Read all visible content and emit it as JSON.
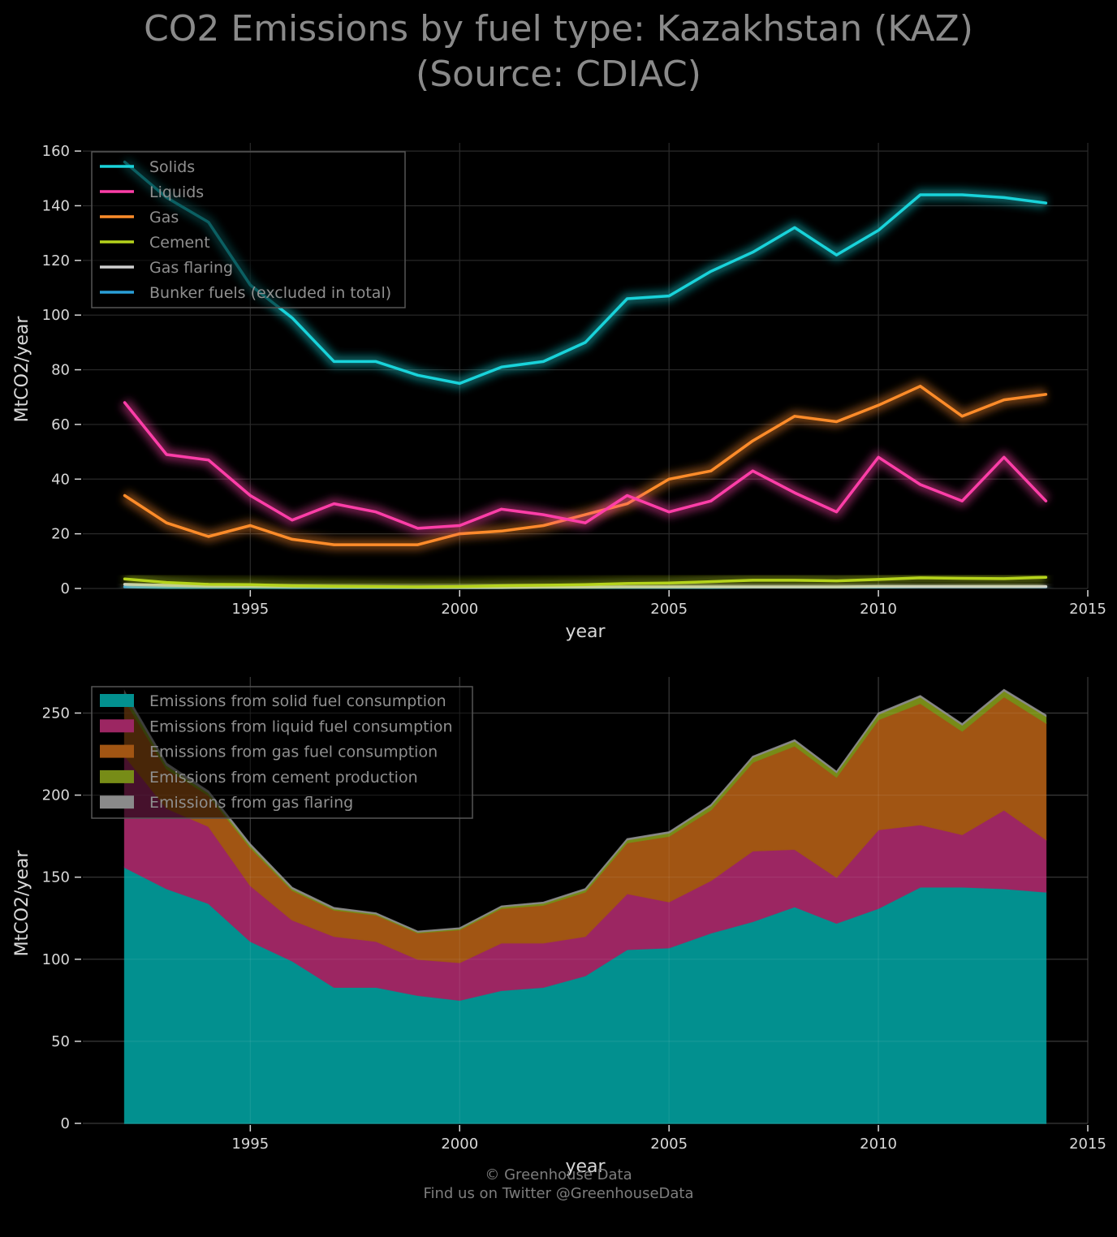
{
  "title": {
    "line1": "CO2 Emissions by fuel type: Kazakhstan (KAZ)",
    "line2": "(Source: CDIAC)"
  },
  "footer": {
    "line1": "© Greenhouse Data",
    "line2": "Find us on Twitter @GreenhouseData"
  },
  "colors": {
    "solids": "#19d3da",
    "liquids": "#ff3ea8",
    "gas": "#ff8c2a",
    "cement": "#b5d31c",
    "flaring": "#cfcfcf",
    "bunker": "#2a9fd8",
    "area_solids": "#02908f",
    "area_liquids": "#9c2662",
    "area_gas": "#a15513",
    "area_cement": "#778c17",
    "area_flaring": "#8a8a8a"
  },
  "chart_data": [
    {
      "type": "line",
      "xlabel": "year",
      "ylabel": "MtCO2/year",
      "xlim": [
        1991,
        2015
      ],
      "ylim": [
        0,
        163
      ],
      "xticks": [
        1995,
        2000,
        2005,
        2010,
        2015
      ],
      "yticks": [
        0,
        20,
        40,
        60,
        80,
        100,
        120,
        140,
        160
      ],
      "grid": true,
      "legend_position": "top-left",
      "x": [
        1992,
        1993,
        1994,
        1995,
        1996,
        1997,
        1998,
        1999,
        2000,
        2001,
        2002,
        2003,
        2004,
        2005,
        2006,
        2007,
        2008,
        2009,
        2010,
        2011,
        2012,
        2013,
        2014
      ],
      "series": [
        {
          "name": "Solids",
          "values": [
            156,
            143,
            134,
            111,
            99,
            83,
            83,
            78,
            75,
            81,
            83,
            90,
            106,
            107,
            116,
            123,
            132,
            122,
            131,
            144,
            144,
            143,
            141
          ]
        },
        {
          "name": "Liquids",
          "values": [
            68,
            49,
            47,
            34,
            25,
            31,
            28,
            22,
            23,
            29,
            27,
            24,
            34,
            28,
            32,
            43,
            35,
            28,
            48,
            38,
            32,
            48,
            32
          ]
        },
        {
          "name": "Gas",
          "values": [
            34,
            24,
            19,
            23,
            18,
            16,
            16,
            16,
            20,
            21,
            23,
            27,
            31,
            40,
            43,
            54,
            63,
            61,
            67,
            74,
            63,
            69,
            71
          ]
        },
        {
          "name": "Cement",
          "values": [
            3.5,
            2.2,
            1.5,
            1.4,
            1.0,
            0.8,
            0.7,
            0.6,
            0.7,
            1.0,
            1.2,
            1.4,
            1.8,
            2.0,
            2.5,
            3.0,
            3.0,
            2.8,
            3.3,
            3.9,
            3.7,
            3.6,
            4.1
          ]
        },
        {
          "name": "Gas flaring",
          "values": [
            1.5,
            1.2,
            0.9,
            0.8,
            0.7,
            0.6,
            0.5,
            0.4,
            0.4,
            0.4,
            0.5,
            0.5,
            0.6,
            0.6,
            0.6,
            0.6,
            0.6,
            0.6,
            0.7,
            0.7,
            0.7,
            0.7,
            0.7
          ]
        },
        {
          "name": "Bunker fuels (excluded in total)",
          "values": [
            0.6,
            0.4,
            0.4,
            0.4,
            0.3,
            0.3,
            0.3,
            0.3,
            0.3,
            0.3,
            0.4,
            0.4,
            0.4,
            0.4,
            0.4,
            0.5,
            0.5,
            0.5,
            0.5,
            0.6,
            0.6,
            0.6,
            0.6
          ]
        }
      ]
    },
    {
      "type": "area",
      "stacked": true,
      "xlabel": "year",
      "ylabel": "MtCO2/year",
      "xlim": [
        1991,
        2015
      ],
      "ylim": [
        0,
        272
      ],
      "xticks": [
        1995,
        2000,
        2005,
        2010,
        2015
      ],
      "yticks": [
        0,
        50,
        100,
        150,
        200,
        250
      ],
      "grid": true,
      "legend_position": "top-left",
      "x": [
        1992,
        1993,
        1994,
        1995,
        1996,
        1997,
        1998,
        1999,
        2000,
        2001,
        2002,
        2003,
        2004,
        2005,
        2006,
        2007,
        2008,
        2009,
        2010,
        2011,
        2012,
        2013,
        2014
      ],
      "series": [
        {
          "name": "Emissions from solid fuel consumption",
          "values": [
            156,
            143,
            134,
            111,
            99,
            83,
            83,
            78,
            75,
            81,
            83,
            90,
            106,
            107,
            116,
            123,
            132,
            122,
            131,
            144,
            144,
            143,
            141
          ]
        },
        {
          "name": "Emissions from liquid fuel consumption",
          "values": [
            68,
            49,
            47,
            34,
            25,
            31,
            28,
            22,
            23,
            29,
            27,
            24,
            34,
            28,
            32,
            43,
            35,
            28,
            48,
            38,
            32,
            48,
            32
          ]
        },
        {
          "name": "Emissions from gas fuel consumption",
          "values": [
            34,
            24,
            19,
            23,
            18,
            16,
            16,
            16,
            20,
            21,
            23,
            27,
            31,
            40,
            43,
            54,
            63,
            61,
            67,
            74,
            63,
            69,
            71
          ]
        },
        {
          "name": "Emissions from cement production",
          "values": [
            3.5,
            2.2,
            1.5,
            1.4,
            1.0,
            0.8,
            0.7,
            0.6,
            0.7,
            1.0,
            1.2,
            1.4,
            1.8,
            2.0,
            2.5,
            3.0,
            3.0,
            2.8,
            3.3,
            3.9,
            3.7,
            3.6,
            4.1
          ]
        },
        {
          "name": "Emissions from gas flaring",
          "values": [
            1.5,
            1.2,
            0.9,
            0.8,
            0.7,
            0.6,
            0.5,
            0.4,
            0.4,
            0.4,
            0.5,
            0.5,
            0.6,
            0.6,
            0.6,
            0.6,
            0.6,
            0.6,
            0.7,
            0.7,
            0.7,
            0.7,
            0.7
          ]
        }
      ]
    }
  ]
}
